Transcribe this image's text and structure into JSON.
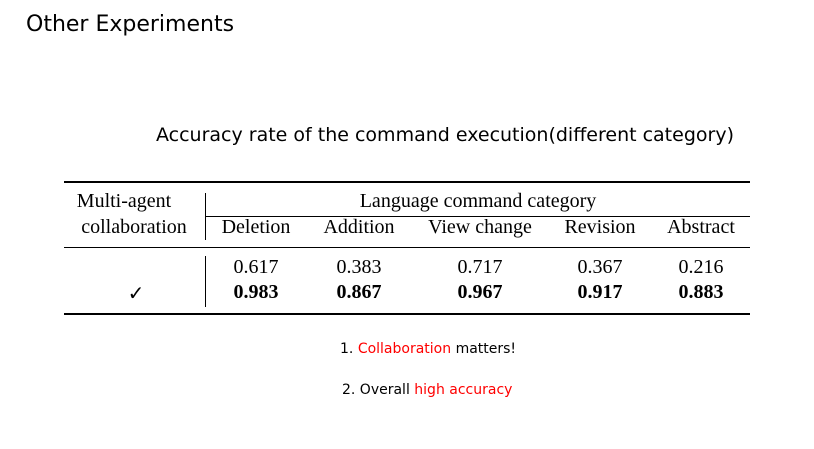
{
  "slide": {
    "title": "Other Experiments",
    "subtitle": "Accuracy rate of the command execution(different category)"
  },
  "table": {
    "row_header": [
      "Multi-agent",
      "collaboration"
    ],
    "group_header": "Language command category",
    "columns": [
      "Deletion",
      "Addition",
      "View change",
      "Revision",
      "Abstract"
    ],
    "rows": [
      {
        "label": "",
        "values": [
          "0.617",
          "0.383",
          "0.717",
          "0.367",
          "0.216"
        ]
      },
      {
        "label": "✓",
        "values": [
          "0.983",
          "0.867",
          "0.967",
          "0.917",
          "0.883"
        ]
      }
    ]
  },
  "notes": [
    {
      "prefix": "1. ",
      "highlight": "Collaboration",
      "suffix": " matters!",
      "highlight_color": "#ff0000"
    },
    {
      "prefix": "2. Overall ",
      "highlight": "high accuracy",
      "suffix": "",
      "highlight_color": "#ff0000"
    }
  ]
}
